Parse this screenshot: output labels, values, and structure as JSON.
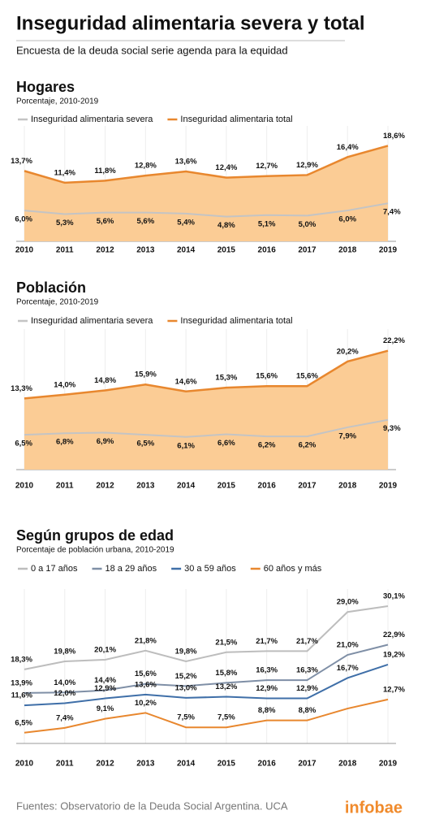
{
  "title": "Inseguridad alimentaria severa y total",
  "subtitle": "Encuesta de la deuda social serie agenda para la equidad",
  "chart_data": [
    {
      "type": "area",
      "title": "Hogares",
      "subtitle": "Porcentaje, 2010-2019",
      "categories": [
        "2010",
        "2011",
        "2012",
        "2013",
        "2014",
        "2015",
        "2016",
        "2017",
        "2018",
        "2019"
      ],
      "series": [
        {
          "name": "Inseguridad alimentaria severa",
          "color": "#c4c4c4",
          "values": [
            6.0,
            5.3,
            5.6,
            5.6,
            5.4,
            4.8,
            5.1,
            5.0,
            6.0,
            7.4
          ],
          "value_labels": [
            "6,0%",
            "5,3%",
            "5,6%",
            "5,6%",
            "5,4%",
            "4,8%",
            "5,1%",
            "5,0%",
            "6,0%",
            "7,4%"
          ]
        },
        {
          "name": "Inseguridad alimentaria total",
          "color": "#e8872e",
          "fill": "#fbcc95",
          "values": [
            13.7,
            11.4,
            11.8,
            12.8,
            13.6,
            12.4,
            12.7,
            12.9,
            16.4,
            18.6
          ],
          "value_labels": [
            "13,7%",
            "11,4%",
            "11,8%",
            "12,8%",
            "13,6%",
            "12,4%",
            "12,7%",
            "12,9%",
            "16,4%",
            "18,6%"
          ]
        }
      ]
    },
    {
      "type": "area",
      "title": "Población",
      "subtitle": "Porcentaje, 2010-2019",
      "categories": [
        "2010",
        "2011",
        "2012",
        "2013",
        "2014",
        "2015",
        "2016",
        "2017",
        "2018",
        "2019"
      ],
      "series": [
        {
          "name": "Inseguridad alimentaria severa",
          "color": "#c4c4c4",
          "values": [
            6.5,
            6.8,
            6.9,
            6.5,
            6.1,
            6.6,
            6.2,
            6.2,
            7.9,
            9.3
          ],
          "value_labels": [
            "6,5%",
            "6,8%",
            "6,9%",
            "6,5%",
            "6,1%",
            "6,6%",
            "6,2%",
            "6,2%",
            "7,9%",
            "9,3%"
          ]
        },
        {
          "name": "Inseguridad alimentaria total",
          "color": "#e8872e",
          "fill": "#fbcc95",
          "values": [
            13.3,
            14.0,
            14.8,
            15.9,
            14.6,
            15.3,
            15.6,
            15.6,
            20.2,
            22.2
          ],
          "value_labels": [
            "13,3%",
            "14,0%",
            "14,8%",
            "15,9%",
            "14,6%",
            "15,3%",
            "15,6%",
            "15,6%",
            "20,2%",
            "22,2%"
          ]
        }
      ]
    },
    {
      "type": "line",
      "title": "Según grupos de edad",
      "subtitle": "Porcentaje de población urbana, 2010-2019",
      "categories": [
        "2010",
        "2011",
        "2012",
        "2013",
        "2014",
        "2015",
        "2016",
        "2017",
        "2018",
        "2019"
      ],
      "series": [
        {
          "name": "0 a 17 años",
          "color": "#bdbdbd",
          "values": [
            18.3,
            19.8,
            20.1,
            21.8,
            19.8,
            21.5,
            21.7,
            21.7,
            29.0,
            30.1
          ],
          "value_labels": [
            "18,3%",
            "19,8%",
            "20,1%",
            "21,8%",
            "19,8%",
            "21,5%",
            "21,7%",
            "21,7%",
            "29,0%",
            "30,1%"
          ]
        },
        {
          "name": "18 a 29 años",
          "color": "#7f8fa6",
          "values": [
            13.9,
            14.0,
            14.4,
            15.6,
            15.2,
            15.8,
            16.3,
            16.3,
            21.0,
            22.9
          ],
          "value_labels": [
            "13,9%",
            "14,0%",
            "14,4%",
            "15,6%",
            "15,2%",
            "15,8%",
            "16,3%",
            "16,3%",
            "21,0%",
            "22,9%"
          ]
        },
        {
          "name": "30 a 59 años",
          "color": "#3f6fa8",
          "values": [
            11.6,
            12.0,
            12.9,
            13.6,
            13.0,
            13.2,
            12.9,
            12.9,
            16.7,
            19.2
          ],
          "value_labels": [
            "11,6%",
            "12,0%",
            "12,9%",
            "13,6%",
            "13,0%",
            "13,2%",
            "12,9%",
            "12,9%",
            "16,7%",
            "19,2%"
          ]
        },
        {
          "name": "60 años y más",
          "color": "#e8872e",
          "values": [
            6.5,
            7.4,
            9.1,
            10.2,
            7.5,
            7.5,
            8.8,
            8.8,
            11.0,
            12.7
          ],
          "value_labels": [
            "6,5%",
            "7,4%",
            "9,1%",
            "10,2%",
            "7,5%",
            "7,5%",
            "8,8%",
            "8,8%",
            null,
            "12,7%"
          ]
        }
      ]
    }
  ],
  "source": "Fuentes: Observatorio de la Deuda Social Argentina. UCA",
  "brand": "infobae"
}
